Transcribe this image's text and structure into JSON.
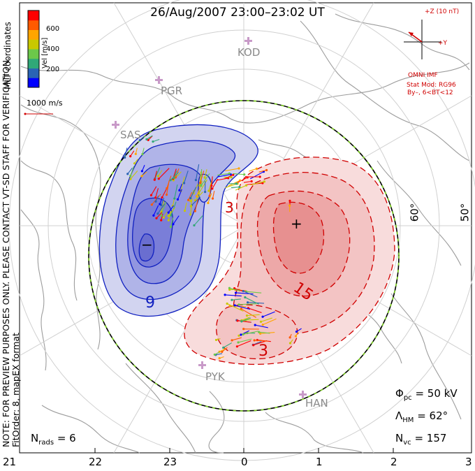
{
  "title": "26/Aug/2007 23:00–23:02 UT",
  "side_note": {
    "line1": "NOTE: FOR PREVIEW PURPOSES ONLY. PLEASE CONTACT VT-SD STAFF FOR VERIFICATION.",
    "line2": "FitOrder: 8, mapEX format"
  },
  "colorbar": {
    "label": "Vel [m/s]",
    "coord_label": "MLT coordinates",
    "ticks": [
      "600",
      "400",
      "200"
    ],
    "colors": [
      "#ff0000",
      "#ff5a00",
      "#ffa500",
      "#c8c800",
      "#6cc84a",
      "#30a878",
      "#2a64b4",
      "#0000ff"
    ]
  },
  "vector_scale": "1000 m/s",
  "imf": {
    "z_label": "+Z (10 nT)",
    "y_label": "+Y",
    "source": "OMNI IMF",
    "model": "Stat Mod: RG96",
    "condition": "By–, 6<BT<12"
  },
  "stations": [
    "KOD",
    "PGR",
    "SAS",
    "PYK",
    "HAN"
  ],
  "latitude_labels": [
    "60°",
    "50°"
  ],
  "contours": {
    "negative": "9",
    "positive": "15",
    "positive_low": "3",
    "min_marker": "−",
    "max_marker": "+"
  },
  "stats": {
    "phi_label": "Φ",
    "phi_sub": "pc",
    "phi_value": "= 50 kV",
    "lambda_label": "Λ",
    "lambda_sub": "HM",
    "lambda_value": "= 62°",
    "nvc_label": "N",
    "nvc_sub": "vc",
    "nvc_value": "= 157",
    "nrads_label": "N",
    "nrads_sub": "rads",
    "nrads_value": "= 6"
  },
  "mlt_ticks": [
    "21",
    "22",
    "23",
    "0",
    "1",
    "2",
    "3"
  ]
}
